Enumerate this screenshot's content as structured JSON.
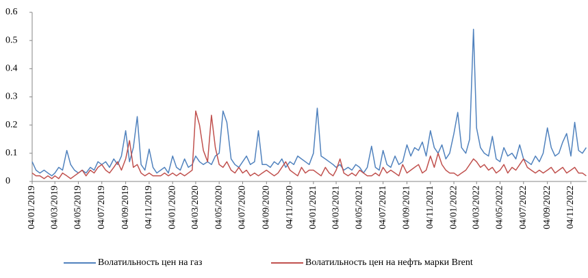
{
  "chart_data": {
    "type": "line",
    "x": [
      "04/01/2019",
      "14/01/2019",
      "24/01/2019",
      "04/02/2019",
      "14/02/2019",
      "24/02/2019",
      "04/03/2019",
      "14/03/2019",
      "24/03/2019",
      "04/04/2019",
      "14/04/2019",
      "24/04/2019",
      "04/05/2019",
      "14/05/2019",
      "24/05/2019",
      "04/06/2019",
      "14/06/2019",
      "24/06/2019",
      "04/07/2019",
      "14/07/2019",
      "24/07/2019",
      "04/08/2019",
      "14/08/2019",
      "24/08/2019",
      "04/09/2019",
      "14/09/2019",
      "24/09/2019",
      "04/10/2019",
      "14/10/2019",
      "24/10/2019",
      "04/11/2019",
      "14/11/2019",
      "24/11/2019",
      "04/12/2019",
      "14/12/2019",
      "24/12/2019",
      "04/01/2020",
      "14/01/2020",
      "24/01/2020",
      "04/02/2020",
      "14/02/2020",
      "24/02/2020",
      "04/03/2020",
      "14/03/2020",
      "24/03/2020",
      "04/04/2020",
      "14/04/2020",
      "24/04/2020",
      "04/05/2020",
      "14/05/2020",
      "24/05/2020",
      "04/06/2020",
      "14/06/2020",
      "24/06/2020",
      "04/07/2020",
      "14/07/2020",
      "24/07/2020",
      "04/08/2020",
      "14/08/2020",
      "24/08/2020",
      "04/09/2020",
      "14/09/2020",
      "24/09/2020",
      "04/10/2020",
      "14/10/2020",
      "24/10/2020",
      "04/11/2020",
      "14/11/2020",
      "24/11/2020",
      "04/12/2020",
      "14/12/2020",
      "24/12/2020",
      "04/01/2021",
      "14/01/2021",
      "24/01/2021",
      "04/02/2021",
      "14/02/2021",
      "24/02/2021",
      "04/03/2021",
      "14/03/2021",
      "24/03/2021",
      "04/04/2021",
      "14/04/2021",
      "24/04/2021",
      "04/05/2021",
      "14/05/2021",
      "24/05/2021",
      "04/06/2021",
      "14/06/2021",
      "24/06/2021",
      "04/07/2021",
      "14/07/2021",
      "24/07/2021",
      "04/08/2021",
      "14/08/2021",
      "24/08/2021",
      "04/09/2021",
      "14/09/2021",
      "24/09/2021",
      "04/10/2021",
      "14/10/2021",
      "24/10/2021",
      "04/11/2021",
      "14/11/2021",
      "24/11/2021",
      "04/12/2021",
      "14/12/2021",
      "24/12/2021",
      "04/01/2022",
      "14/01/2022",
      "24/01/2022",
      "04/02/2022",
      "14/02/2022",
      "24/02/2022",
      "04/03/2022",
      "14/03/2022",
      "24/03/2022",
      "04/04/2022",
      "14/04/2022",
      "24/04/2022",
      "04/05/2022",
      "14/05/2022",
      "24/05/2022",
      "04/06/2022",
      "14/06/2022",
      "24/06/2022",
      "04/07/2022",
      "14/07/2022",
      "24/07/2022",
      "04/08/2022",
      "14/08/2022",
      "24/08/2022",
      "04/09/2022",
      "14/09/2022",
      "24/09/2022",
      "04/10/2022",
      "14/10/2022",
      "24/10/2022",
      "04/11/2022",
      "14/11/2022",
      "24/11/2022",
      "04/12/2022",
      "14/12/2022"
    ],
    "series": [
      {
        "name": "Волатильность цен на газ",
        "color": "#4f81bd",
        "values": [
          0.07,
          0.04,
          0.03,
          0.04,
          0.03,
          0.02,
          0.03,
          0.05,
          0.04,
          0.11,
          0.06,
          0.04,
          0.03,
          0.04,
          0.03,
          0.05,
          0.04,
          0.07,
          0.06,
          0.07,
          0.05,
          0.08,
          0.06,
          0.09,
          0.18,
          0.07,
          0.12,
          0.23,
          0.06,
          0.04,
          0.115,
          0.05,
          0.03,
          0.04,
          0.05,
          0.03,
          0.09,
          0.05,
          0.04,
          0.08,
          0.05,
          0.06,
          0.09,
          0.07,
          0.06,
          0.07,
          0.06,
          0.09,
          0.1,
          0.25,
          0.21,
          0.08,
          0.06,
          0.05,
          0.07,
          0.09,
          0.06,
          0.07,
          0.18,
          0.06,
          0.06,
          0.05,
          0.07,
          0.06,
          0.08,
          0.05,
          0.07,
          0.06,
          0.09,
          0.08,
          0.07,
          0.06,
          0.1,
          0.26,
          0.09,
          0.08,
          0.07,
          0.06,
          0.05,
          0.06,
          0.04,
          0.05,
          0.04,
          0.06,
          0.05,
          0.03,
          0.05,
          0.125,
          0.05,
          0.04,
          0.11,
          0.06,
          0.05,
          0.09,
          0.06,
          0.07,
          0.13,
          0.09,
          0.12,
          0.11,
          0.14,
          0.09,
          0.18,
          0.12,
          0.1,
          0.13,
          0.08,
          0.1,
          0.17,
          0.245,
          0.12,
          0.1,
          0.15,
          0.54,
          0.19,
          0.12,
          0.1,
          0.09,
          0.16,
          0.08,
          0.07,
          0.12,
          0.09,
          0.1,
          0.08,
          0.13,
          0.08,
          0.07,
          0.06,
          0.09,
          0.07,
          0.1,
          0.19,
          0.12,
          0.09,
          0.1,
          0.14,
          0.17,
          0.09,
          0.21,
          0.11,
          0.1,
          0.12
        ]
      },
      {
        "name": "Волатильность цен на нефть марки Brent",
        "color": "#c0504d",
        "values": [
          0.03,
          0.02,
          0.02,
          0.01,
          0.02,
          0.01,
          0.02,
          0.01,
          0.03,
          0.02,
          0.01,
          0.02,
          0.03,
          0.04,
          0.02,
          0.04,
          0.03,
          0.05,
          0.06,
          0.04,
          0.03,
          0.05,
          0.07,
          0.04,
          0.08,
          0.145,
          0.05,
          0.06,
          0.03,
          0.02,
          0.03,
          0.02,
          0.02,
          0.02,
          0.03,
          0.02,
          0.03,
          0.02,
          0.03,
          0.02,
          0.03,
          0.04,
          0.25,
          0.2,
          0.11,
          0.07,
          0.235,
          0.12,
          0.06,
          0.05,
          0.07,
          0.04,
          0.03,
          0.05,
          0.03,
          0.04,
          0.02,
          0.03,
          0.02,
          0.03,
          0.04,
          0.03,
          0.02,
          0.03,
          0.05,
          0.07,
          0.04,
          0.03,
          0.02,
          0.05,
          0.03,
          0.04,
          0.04,
          0.03,
          0.02,
          0.05,
          0.03,
          0.02,
          0.04,
          0.08,
          0.03,
          0.02,
          0.03,
          0.02,
          0.04,
          0.03,
          0.02,
          0.02,
          0.03,
          0.02,
          0.05,
          0.03,
          0.04,
          0.03,
          0.02,
          0.06,
          0.03,
          0.04,
          0.05,
          0.06,
          0.03,
          0.04,
          0.09,
          0.05,
          0.1,
          0.06,
          0.04,
          0.03,
          0.03,
          0.02,
          0.03,
          0.04,
          0.06,
          0.08,
          0.07,
          0.05,
          0.06,
          0.04,
          0.05,
          0.03,
          0.04,
          0.06,
          0.03,
          0.05,
          0.04,
          0.06,
          0.08,
          0.05,
          0.04,
          0.03,
          0.04,
          0.03,
          0.04,
          0.05,
          0.03,
          0.04,
          0.05,
          0.03,
          0.04,
          0.05,
          0.03,
          0.03,
          0.02
        ]
      }
    ],
    "xlim": [
      "04/01/2019",
      "15/12/2022"
    ],
    "xticks": [
      "04/01/2019",
      "04/03/2019",
      "04/05/2019",
      "04/07/2019",
      "04/09/2019",
      "04/11/2019",
      "04/01/2020",
      "04/03/2020",
      "04/05/2020",
      "04/07/2020",
      "04/09/2020",
      "04/11/2020",
      "04/01/2021",
      "04/03/2021",
      "04/05/2021",
      "04/07/2021",
      "04/09/2021",
      "04/11/2021",
      "04/01/2022",
      "04/03/2022",
      "04/05/2022",
      "04/07/2022",
      "04/09/2022",
      "04/11/2022"
    ],
    "ylim": [
      0,
      0.6
    ],
    "yticks": [
      0,
      0.1,
      0.2,
      0.3,
      0.4,
      0.5,
      0.6
    ],
    "grid": false,
    "legend": "bottom"
  }
}
